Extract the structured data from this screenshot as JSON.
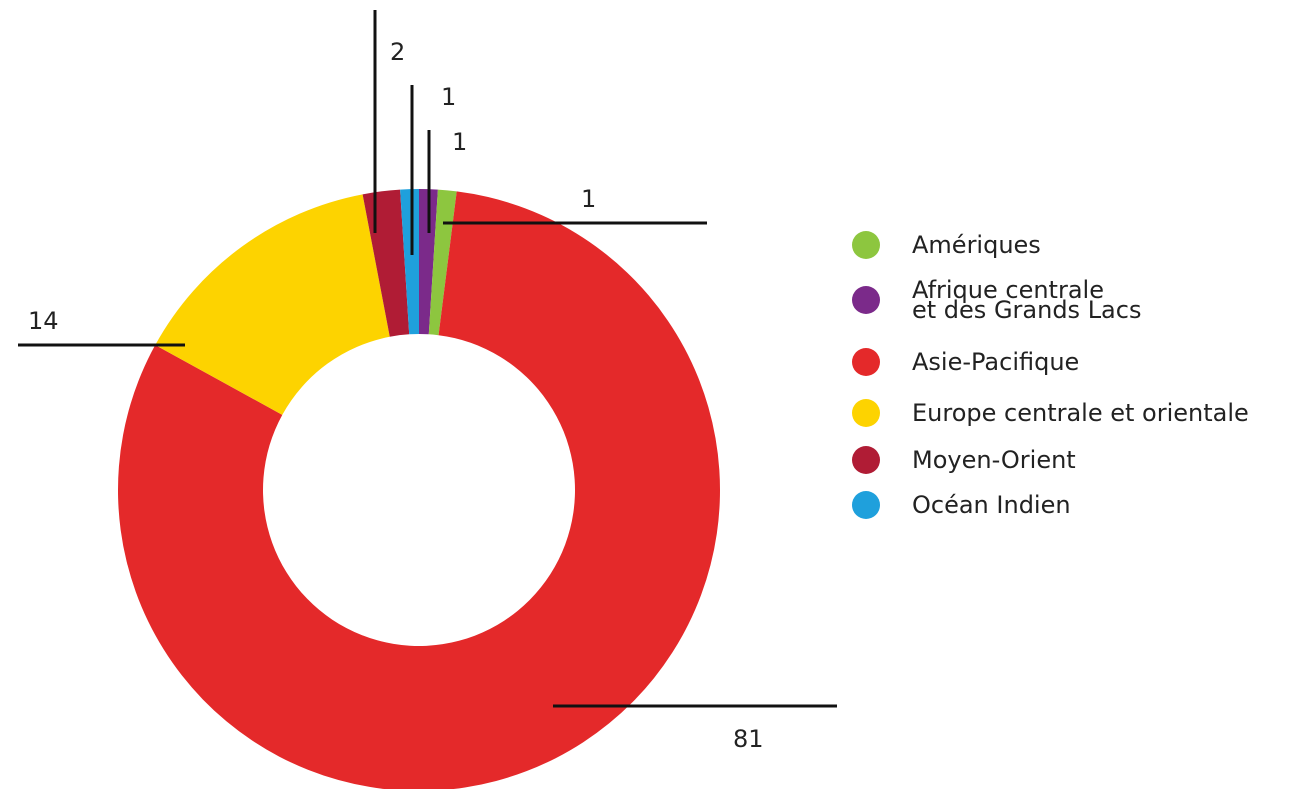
{
  "chart_data": {
    "type": "donut",
    "series": [
      {
        "name": "Amériques",
        "color": "#8dc63f",
        "values": [
          1
        ]
      },
      {
        "name": "Afrique centrale\net des Grands Lacs",
        "color": "#7b2a8a",
        "values": [
          1
        ]
      },
      {
        "name": "Asie-Pacifique",
        "color": "#e4292a",
        "values": [
          81
        ]
      },
      {
        "name": "Europe centrale et orientale",
        "color": "#fdd300",
        "values": [
          14
        ]
      },
      {
        "name": "Moyen-Orient",
        "color": "#b01c35",
        "values": [
          2
        ]
      },
      {
        "name": "Océan Indien",
        "color": "#1fa0dc",
        "values": [
          1
        ]
      }
    ]
  }
}
